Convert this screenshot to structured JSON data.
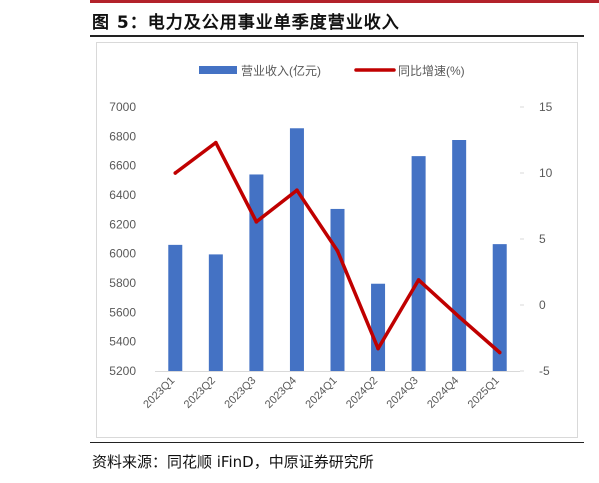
{
  "figure": {
    "title": "图 5：电力及公用事业单季度营业收入",
    "source": "资料来源：同花顺 iFinD，中原证券研究所"
  },
  "colors": {
    "bar": "#4472c4",
    "line": "#c00000",
    "axis_text": "#595959",
    "grid": "#d9d9d9",
    "accent_rule": "#b3222a"
  },
  "chart_data": {
    "type": "bar",
    "categories": [
      "2023Q1",
      "2023Q2",
      "2023Q3",
      "2023Q4",
      "2024Q1",
      "2024Q2",
      "2024Q3",
      "2024Q4",
      "2025Q1"
    ],
    "series": [
      {
        "name": "营业收入(亿元)",
        "type": "bar",
        "axis": "left",
        "values": [
          6060,
          5995,
          6540,
          6855,
          6305,
          5795,
          6665,
          6775,
          6065
        ]
      },
      {
        "name": "同比增速(%)",
        "type": "line",
        "axis": "right",
        "values": [
          10.0,
          12.3,
          6.3,
          8.7,
          4.1,
          -3.3,
          1.9,
          -0.9,
          -3.6
        ]
      }
    ],
    "y_left": {
      "lim": [
        5200,
        7000
      ],
      "ticks": [
        "5200",
        "5400",
        "5600",
        "5800",
        "6000",
        "6200",
        "6400",
        "6600",
        "6800",
        "7000"
      ]
    },
    "y_right": {
      "lim": [
        -5,
        15
      ],
      "ticks": [
        "-5",
        "0",
        "5",
        "10",
        "15"
      ]
    },
    "legend": {
      "position": "top"
    },
    "grid": false
  }
}
